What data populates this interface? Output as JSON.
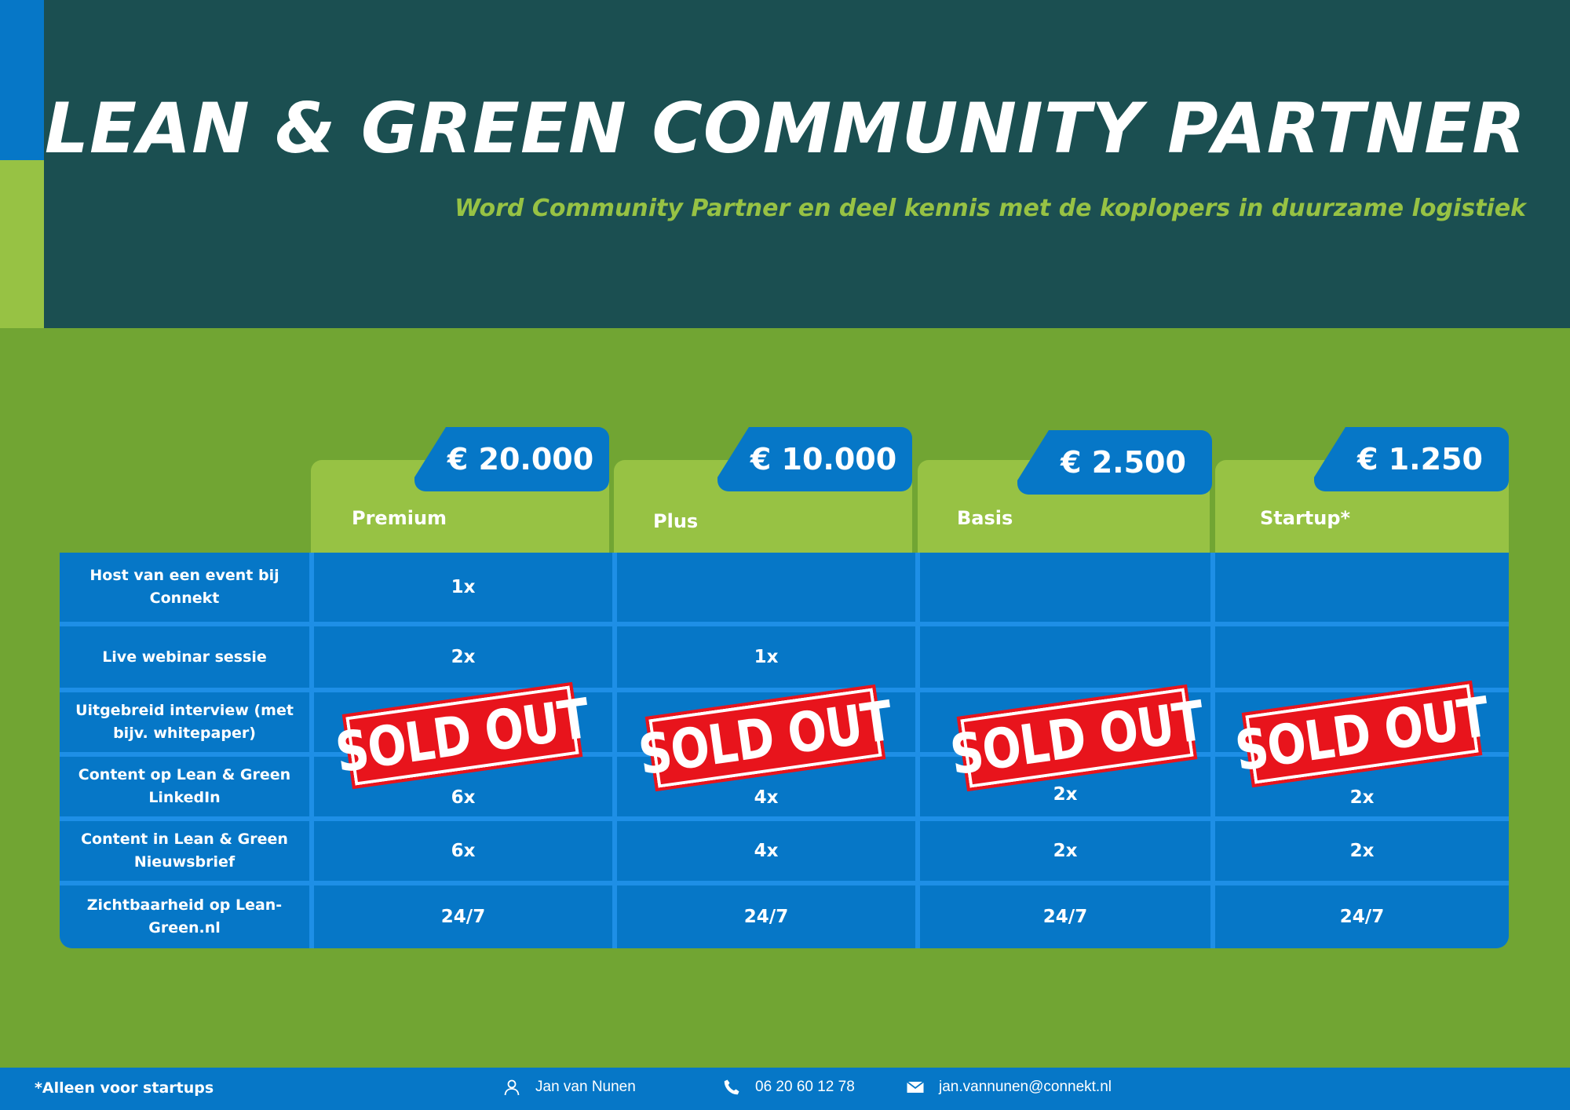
{
  "header": {
    "title": "LEAN & GREEN COMMUNITY PARTNER",
    "subtitle": "Word Community Partner en deel kennis met de koplopers in duurzame logistiek"
  },
  "tiers": [
    {
      "name": "Premium",
      "price": "€ 20.000",
      "status": "SOLD OUT"
    },
    {
      "name": "Plus",
      "price": "€ 10.000",
      "status": "SOLD OUT"
    },
    {
      "name": "Basis",
      "price": "€ 2.500",
      "status": "SOLD OUT"
    },
    {
      "name": "Startup*",
      "price": "€ 1.250",
      "status": "SOLD OUT"
    }
  ],
  "rows": [
    {
      "label": "Host van een event bij Connekt",
      "values": [
        "1x",
        "",
        "",
        ""
      ]
    },
    {
      "label": "Live webinar sessie",
      "values": [
        "2x",
        "1x",
        "",
        ""
      ]
    },
    {
      "label": "Uitgebreid interview (met bijv. whitepaper)",
      "values": [
        "",
        "",
        "",
        ""
      ]
    },
    {
      "label": "Content op Lean & Green LinkedIn",
      "values": [
        "6x",
        "4x",
        "2x",
        "2x"
      ]
    },
    {
      "label": "Content in Lean & Green Nieuwsbrief",
      "values": [
        "6x",
        "4x",
        "2x",
        "2x"
      ]
    },
    {
      "label": "Zichtbaarheid op Lean-Green.nl",
      "values": [
        "24/7",
        "24/7",
        "24/7",
        "24/7"
      ]
    }
  ],
  "footer": {
    "footnote": "*Alleen voor startups",
    "contact_name": "Jan van Nunen",
    "phone": "06 20 60 12 78",
    "email": "jan.vannunen@connekt.nl"
  },
  "colors": {
    "header_bg": "#1b4f51",
    "accent_green": "#97c244",
    "body_green": "#71a533",
    "accent_blue": "#0677c7",
    "stamp_red": "#e8141c"
  },
  "icons": {
    "contact": "person-icon",
    "phone": "phone-icon",
    "email": "envelope-icon"
  }
}
